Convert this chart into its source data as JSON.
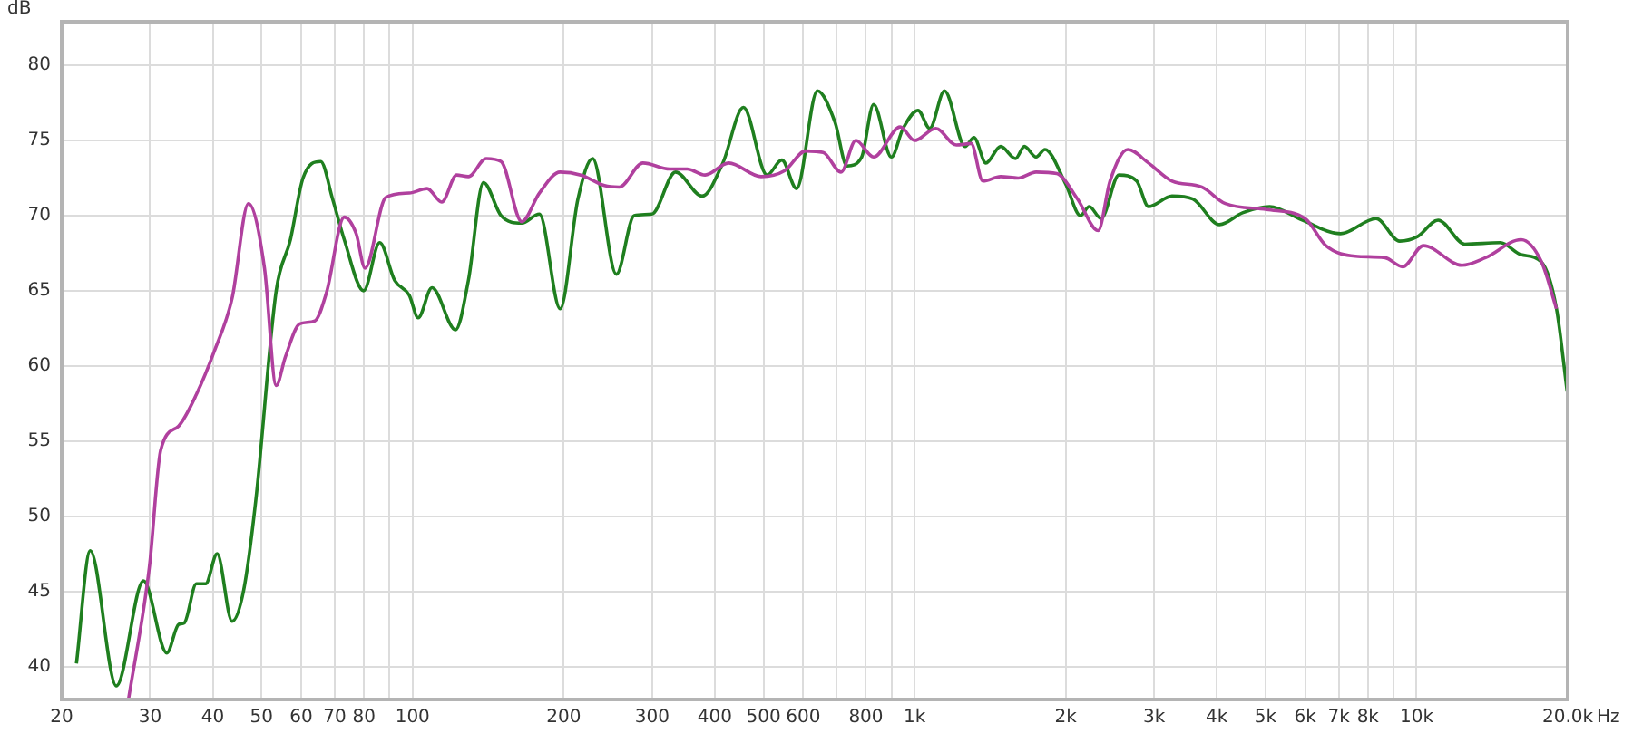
{
  "chart_data": {
    "type": "line",
    "xlabel": "Hz",
    "ylabel": "dB",
    "log": "x",
    "grid": true,
    "legend": false,
    "marker": "none",
    "line_style": "solid",
    "xlim": [
      20,
      20000
    ],
    "ylim": [
      37.8,
      82.9
    ],
    "xticks": [
      20,
      30,
      40,
      50,
      60,
      70,
      80,
      {
        "value": 90,
        "label": null
      },
      100,
      200,
      300,
      400,
      500,
      600,
      {
        "value": 700,
        "label": null
      },
      800,
      {
        "value": 900,
        "label": null
      },
      {
        "value": 1000,
        "label": "1k"
      },
      {
        "value": 2000,
        "label": "2k"
      },
      {
        "value": 3000,
        "label": "3k"
      },
      {
        "value": 4000,
        "label": "4k"
      },
      {
        "value": 5000,
        "label": "5k"
      },
      {
        "value": 6000,
        "label": "6k"
      },
      {
        "value": 7000,
        "label": "7k"
      },
      {
        "value": 8000,
        "label": "8k"
      },
      {
        "value": 9000,
        "label": null
      },
      {
        "value": 10000,
        "label": "10k"
      },
      {
        "value": 20000,
        "label": "20.0k"
      }
    ],
    "yticks": [
      40,
      45,
      50,
      55,
      60,
      65,
      70,
      75,
      80
    ],
    "series": [
      {
        "color": "#b0409e",
        "x": [
          27.2,
          29.9,
          31.5,
          34.2,
          37.1,
          40.3,
          43.7,
          47.1,
          50.7,
          53.5,
          55.8,
          59.6,
          63.9,
          67.4,
          73.1,
          77.2,
          80.4,
          88.4,
          98.5,
          106.9,
          114.3,
          122.4,
          129.2,
          140.2,
          150.1,
          165,
          178.9,
          196.8,
          216.4,
          241.2,
          258,
          287.7,
          325.1,
          352.6,
          382.5,
          426.3,
          494.6,
          551.6,
          606.4,
          657.6,
          713.6,
          763.8,
          828.6,
          936.3,
          1000,
          1102,
          1211,
          1296,
          1368,
          1484,
          1609,
          1746,
          1920,
          2112,
          2321,
          2451,
          2659,
          2924,
          3258,
          3733,
          4159,
          5028,
          5999,
          6597,
          7552,
          8651,
          9385,
          10320,
          12310,
          13720,
          16150,
          17750,
          19000
        ],
        "values": [
          37.9,
          46.6,
          54.4,
          56.0,
          58.1,
          61.0,
          64.5,
          70.8,
          66.5,
          58.7,
          60.6,
          62.8,
          63.0,
          64.9,
          69.9,
          68.8,
          66.5,
          71.2,
          71.5,
          71.8,
          70.9,
          72.7,
          72.6,
          73.8,
          73.6,
          69.6,
          71.5,
          72.9,
          72.7,
          72.0,
          71.9,
          73.5,
          73.1,
          73.1,
          72.7,
          73.5,
          72.6,
          73.0,
          74.3,
          74.2,
          72.9,
          75.0,
          73.9,
          75.9,
          75.0,
          75.8,
          74.7,
          74.8,
          72.3,
          72.6,
          72.5,
          72.9,
          72.8,
          71.1,
          69.0,
          72.3,
          74.4,
          73.5,
          72.3,
          71.9,
          70.8,
          70.4,
          69.8,
          68.0,
          67.3,
          67.2,
          66.6,
          68.0,
          66.7,
          67.2,
          68.4,
          66.9,
          63.8
        ]
      },
      {
        "color": "#1f7f1f",
        "x": [
          21.4,
          22.8,
          25.7,
          29.1,
          32.4,
          34.2,
          35.1,
          37.1,
          38.7,
          40.8,
          43.7,
          46.1,
          48.7,
          53.5,
          57.1,
          60.5,
          65.6,
          69.3,
          73.1,
          79.9,
          86.0,
          92.1,
          98.5,
          102.6,
          109.3,
          121.8,
          129.2,
          138.4,
          150.1,
          165,
          178.9,
          196.8,
          213.5,
          228.4,
          254.7,
          276.3,
          299.7,
          334.1,
          377.4,
          415,
          456.1,
          508.4,
          544,
          582.1,
          640.3,
          694.4,
          733.3,
          784.6,
          828.6,
          899,
          948.5,
          1016,
          1072,
          1147,
          1261,
          1313,
          1387,
          1484,
          1589,
          1655,
          1746,
          1819,
          2000,
          2140,
          2228,
          2353,
          2553,
          2770,
          2924,
          3258,
          3584,
          4050,
          4512,
          5097,
          5917,
          7059,
          8307,
          9256,
          10040,
          11040,
          12480,
          14680,
          16150,
          17750,
          19000,
          19950
        ],
        "values": [
          40.2,
          47.7,
          38.7,
          45.7,
          40.9,
          42.8,
          42.9,
          45.5,
          45.5,
          47.5,
          43.0,
          45.1,
          51.0,
          65.0,
          68.4,
          72.5,
          73.6,
          71.1,
          68.4,
          65.0,
          68.2,
          65.7,
          64.7,
          63.2,
          65.2,
          62.4,
          65.7,
          72.2,
          70.0,
          69.5,
          70.1,
          63.8,
          71.1,
          73.8,
          66.1,
          70.0,
          70.1,
          72.9,
          71.3,
          73.5,
          77.2,
          72.7,
          73.7,
          71.8,
          78.3,
          76.2,
          73.3,
          73.9,
          77.4,
          73.9,
          75.8,
          77.0,
          75.8,
          78.3,
          74.6,
          75.2,
          73.5,
          74.6,
          73.8,
          74.6,
          73.9,
          74.4,
          72.1,
          70.0,
          70.6,
          69.8,
          72.7,
          72.3,
          70.6,
          71.3,
          71.1,
          69.4,
          70.2,
          70.6,
          69.7,
          68.8,
          69.8,
          68.3,
          68.6,
          69.7,
          68.1,
          68.2,
          67.4,
          66.9,
          63.8,
          58.3
        ]
      }
    ]
  }
}
